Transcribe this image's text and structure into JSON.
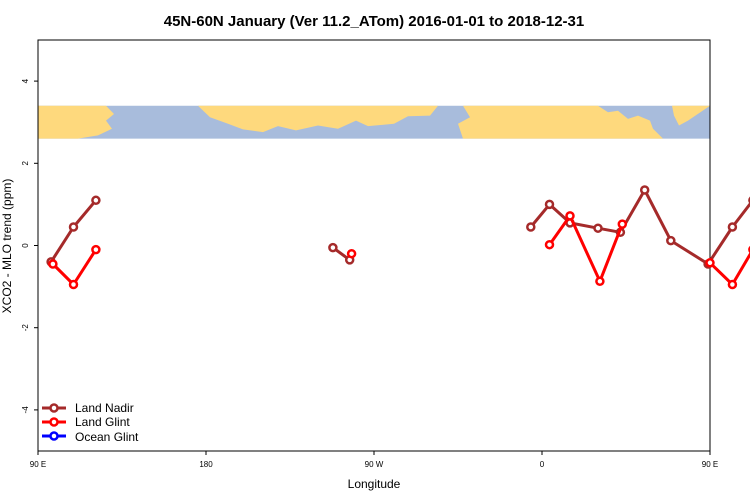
{
  "chart_data": {
    "type": "line",
    "title": "45N-60N January (Ver 11.2_ATom)   2016-01-01 to 2018-12-31",
    "xlabel": "Longitude",
    "ylabel": "XCO2 - MLO trend (ppm)",
    "xlim": [
      90,
      450
    ],
    "ylim": [
      -5,
      5
    ],
    "x_ticks": [
      {
        "value": 90,
        "label": "90 E"
      },
      {
        "value": 180,
        "label": "180"
      },
      {
        "value": 270,
        "label": "90 W"
      },
      {
        "value": 360,
        "label": "0"
      },
      {
        "value": 450,
        "label": "90 E"
      },
      {
        "value": 540,
        "label": "180"
      }
    ],
    "y_ticks": [
      {
        "value": -4,
        "label": "-4"
      },
      {
        "value": -2,
        "label": "-2"
      },
      {
        "value": 0,
        "label": "0"
      },
      {
        "value": 2,
        "label": "2"
      },
      {
        "value": 4,
        "label": "4"
      }
    ],
    "map_band": {
      "y_min": 2.6,
      "y_max": 3.4,
      "ocean_color": "#a8bcdc",
      "land_color": "#fed97d"
    },
    "grid": false,
    "legend_position": "bottom-left",
    "series": [
      {
        "name": "Land Nadir",
        "color": "#a52a2a",
        "segments": [
          [
            [
              97,
              -0.4
            ],
            [
              109,
              0.45
            ],
            [
              121,
              1.1
            ]
          ],
          [
            [
              248,
              -0.05
            ],
            [
              257,
              -0.35
            ]
          ],
          [
            [
              354,
              0.45
            ],
            [
              364,
              1.0
            ],
            [
              375,
              0.55
            ],
            [
              390,
              0.42
            ],
            [
              402,
              0.32
            ],
            [
              415,
              1.35
            ],
            [
              429,
              0.12
            ],
            [
              449,
              -0.45
            ],
            [
              462,
              0.45
            ],
            [
              473,
              1.1
            ]
          ]
        ]
      },
      {
        "name": "Land Glint",
        "color": "#ff0000",
        "segments": [
          [
            [
              98,
              -0.45
            ],
            [
              109,
              -0.95
            ],
            [
              121,
              -0.1
            ]
          ],
          [
            [
              258,
              -0.2
            ]
          ],
          [
            [
              364,
              0.02
            ],
            [
              375,
              0.72
            ],
            [
              391,
              -0.87
            ],
            [
              403,
              0.52
            ]
          ],
          [
            [
              450,
              -0.42
            ],
            [
              462,
              -0.95
            ],
            [
              473,
              -0.1
            ]
          ]
        ]
      },
      {
        "name": "Ocean Glint",
        "color": "#0000ff",
        "segments": []
      }
    ]
  }
}
